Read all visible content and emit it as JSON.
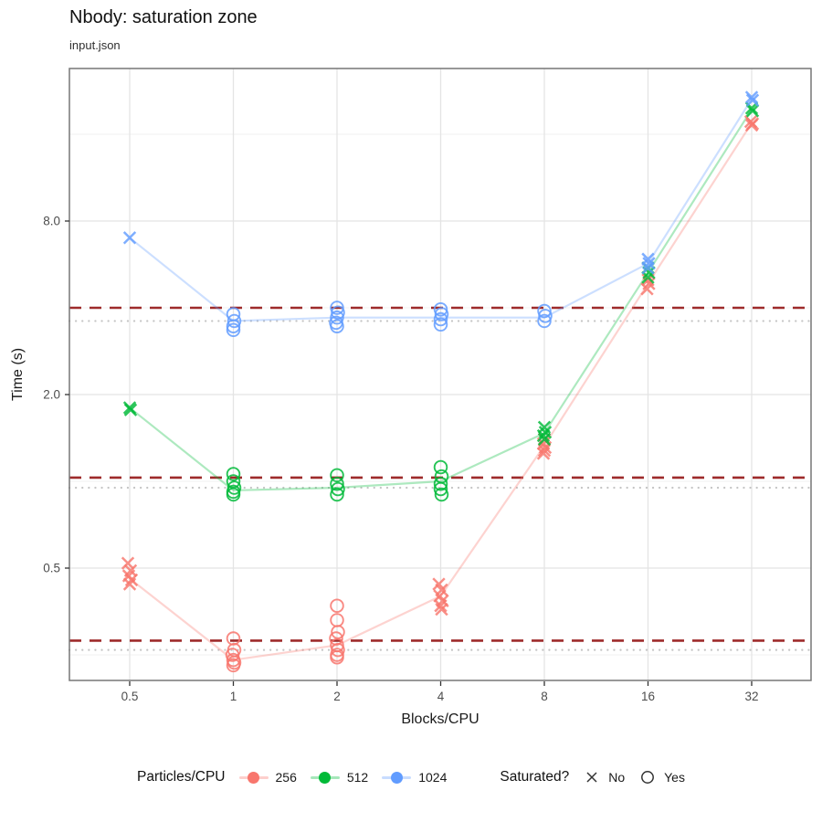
{
  "chart_data": {
    "type": "scatter",
    "title": "Nbody: saturation zone",
    "subtitle": "input.json",
    "xlabel": "Blocks/CPU",
    "ylabel": "Time (s)",
    "x_scale": "log2",
    "y_scale": "log",
    "x_ticks": [
      0.5,
      1,
      2,
      4,
      8,
      16,
      32
    ],
    "x_tick_labels": [
      "0.5",
      "1",
      "2",
      "4",
      "8",
      "16",
      "32"
    ],
    "y_ticks": [
      0.5,
      2.0,
      8.0
    ],
    "y_tick_labels": [
      "0.5",
      "2.0",
      "8.0"
    ],
    "y_minor_gridlines": [
      0.25,
      1.0,
      4.0,
      16.0
    ],
    "ylim": [
      0.2,
      23
    ],
    "grid": true,
    "legend_position": "bottom",
    "ref_lines": [
      {
        "style": "dashed",
        "color": "#9E2B2B",
        "values": [
          4.0,
          1.03,
          0.28
        ]
      },
      {
        "style": "dotted",
        "color": "#C4C4C4",
        "values": [
          3.6,
          0.95,
          0.26
        ]
      }
    ],
    "series": [
      {
        "name": "256",
        "color": "#F8766D",
        "line_x": [
          0.5,
          1,
          2,
          4,
          8,
          16,
          32
        ],
        "line_y": [
          0.46,
          0.24,
          0.27,
          0.4,
          1.33,
          4.85,
          17.5
        ],
        "clusters": [
          {
            "x": 0.5,
            "shape": "x",
            "pts": [
              [
                -2,
                0.52
              ],
              [
                1,
                0.49
              ],
              [
                -1,
                0.47
              ],
              [
                2,
                0.455
              ],
              [
                0,
                0.44
              ]
            ]
          },
          {
            "x": 1,
            "shape": "circle",
            "pts": [
              [
                0,
                0.285
              ],
              [
                1,
                0.26
              ],
              [
                -1,
                0.25
              ],
              [
                0,
                0.24
              ],
              [
                1,
                0.235
              ],
              [
                0,
                0.23
              ]
            ]
          },
          {
            "x": 2,
            "shape": "circle",
            "pts": [
              [
                0,
                0.37
              ],
              [
                0,
                0.33
              ],
              [
                1,
                0.3
              ],
              [
                -1,
                0.285
              ],
              [
                0,
                0.27
              ],
              [
                1,
                0.26
              ],
              [
                0,
                0.25
              ],
              [
                0,
                0.245
              ]
            ]
          },
          {
            "x": 4,
            "shape": "x",
            "pts": [
              [
                -2,
                0.44
              ],
              [
                1,
                0.42
              ],
              [
                -1,
                0.4
              ],
              [
                2,
                0.385
              ],
              [
                0,
                0.37
              ],
              [
                1,
                0.36
              ]
            ]
          },
          {
            "x": 8,
            "shape": "x",
            "pts": [
              [
                0,
                1.4
              ],
              [
                -1,
                1.35
              ],
              [
                1,
                1.31
              ],
              [
                0,
                1.28
              ],
              [
                -1,
                1.25
              ]
            ]
          },
          {
            "x": 16,
            "shape": "x",
            "pts": [
              [
                0,
                5.0
              ],
              [
                1,
                4.85
              ],
              [
                -1,
                4.65
              ]
            ]
          },
          {
            "x": 32,
            "shape": "x",
            "pts": [
              [
                -1,
                17.7
              ],
              [
                1,
                17.4
              ],
              [
                0,
                17.2
              ]
            ]
          }
        ]
      },
      {
        "name": "512",
        "color": "#00BA38",
        "line_x": [
          0.5,
          1,
          2,
          4,
          8,
          16,
          32
        ],
        "line_y": [
          1.8,
          0.93,
          0.95,
          1.0,
          1.47,
          5.3,
          19.5
        ],
        "clusters": [
          {
            "x": 0.5,
            "shape": "x",
            "pts": [
              [
                0,
                1.8
              ],
              [
                1,
                1.77
              ]
            ]
          },
          {
            "x": 1,
            "shape": "circle",
            "pts": [
              [
                0,
                1.06
              ],
              [
                0,
                1.0
              ],
              [
                1,
                0.95
              ],
              [
                0,
                0.92
              ],
              [
                0,
                0.9
              ]
            ]
          },
          {
            "x": 2,
            "shape": "circle",
            "pts": [
              [
                0,
                1.05
              ],
              [
                0,
                0.98
              ],
              [
                1,
                0.94
              ],
              [
                0,
                0.9
              ]
            ]
          },
          {
            "x": 4,
            "shape": "circle",
            "pts": [
              [
                0,
                1.12
              ],
              [
                1,
                1.04
              ],
              [
                0,
                0.98
              ],
              [
                0,
                0.94
              ],
              [
                1,
                0.9
              ]
            ]
          },
          {
            "x": 8,
            "shape": "x",
            "pts": [
              [
                0,
                1.54
              ],
              [
                1,
                1.48
              ],
              [
                -1,
                1.44
              ],
              [
                0,
                1.4
              ]
            ]
          },
          {
            "x": 16,
            "shape": "x",
            "pts": [
              [
                0,
                5.5
              ],
              [
                1,
                5.3
              ],
              [
                0,
                5.1
              ]
            ]
          },
          {
            "x": 32,
            "shape": "x",
            "pts": [
              [
                0,
                19.7
              ],
              [
                1,
                19.3
              ]
            ]
          }
        ]
      },
      {
        "name": "1024",
        "color": "#619CFF",
        "line_x": [
          0.5,
          1,
          2,
          4,
          8,
          16,
          32
        ],
        "line_y": [
          7.0,
          3.6,
          3.7,
          3.7,
          3.7,
          5.7,
          21.2
        ],
        "clusters": [
          {
            "x": 0.5,
            "shape": "x",
            "pts": [
              [
                0,
                7.0
              ]
            ]
          },
          {
            "x": 1,
            "shape": "circle",
            "pts": [
              [
                0,
                3.8
              ],
              [
                1,
                3.6
              ],
              [
                0,
                3.45
              ],
              [
                0,
                3.35
              ]
            ]
          },
          {
            "x": 2,
            "shape": "circle",
            "pts": [
              [
                0,
                4.0
              ],
              [
                1,
                3.85
              ],
              [
                0,
                3.7
              ],
              [
                -1,
                3.55
              ],
              [
                0,
                3.45
              ]
            ]
          },
          {
            "x": 4,
            "shape": "circle",
            "pts": [
              [
                0,
                3.95
              ],
              [
                1,
                3.8
              ],
              [
                0,
                3.65
              ],
              [
                0,
                3.5
              ]
            ]
          },
          {
            "x": 8,
            "shape": "circle",
            "pts": [
              [
                0,
                3.9
              ],
              [
                1,
                3.75
              ],
              [
                0,
                3.6
              ]
            ]
          },
          {
            "x": 16,
            "shape": "x",
            "pts": [
              [
                0,
                5.9
              ],
              [
                1,
                5.7
              ],
              [
                0,
                5.5
              ]
            ]
          },
          {
            "x": 32,
            "shape": "x",
            "pts": [
              [
                0,
                21.5
              ],
              [
                1,
                21.0
              ]
            ]
          }
        ]
      }
    ]
  },
  "legend": {
    "series_title": "Particles/CPU",
    "items": [
      {
        "label": "256",
        "color": "#F8766D"
      },
      {
        "label": "512",
        "color": "#00BA38"
      },
      {
        "label": "1024",
        "color": "#619CFF"
      }
    ],
    "shape_title": "Saturated?",
    "shapes": [
      {
        "shape": "x",
        "label": "No"
      },
      {
        "shape": "circle",
        "label": "Yes"
      }
    ]
  },
  "colors": {
    "dashed_ref": "#9E2B2B",
    "dotted_ref": "#C4C4C4",
    "panel_border": "#777777",
    "grid_major": "#E4E4E4",
    "grid_minor": "#F1F1F1",
    "tick_text": "#4D4D4D",
    "axis_text": "#1A1A1A"
  }
}
